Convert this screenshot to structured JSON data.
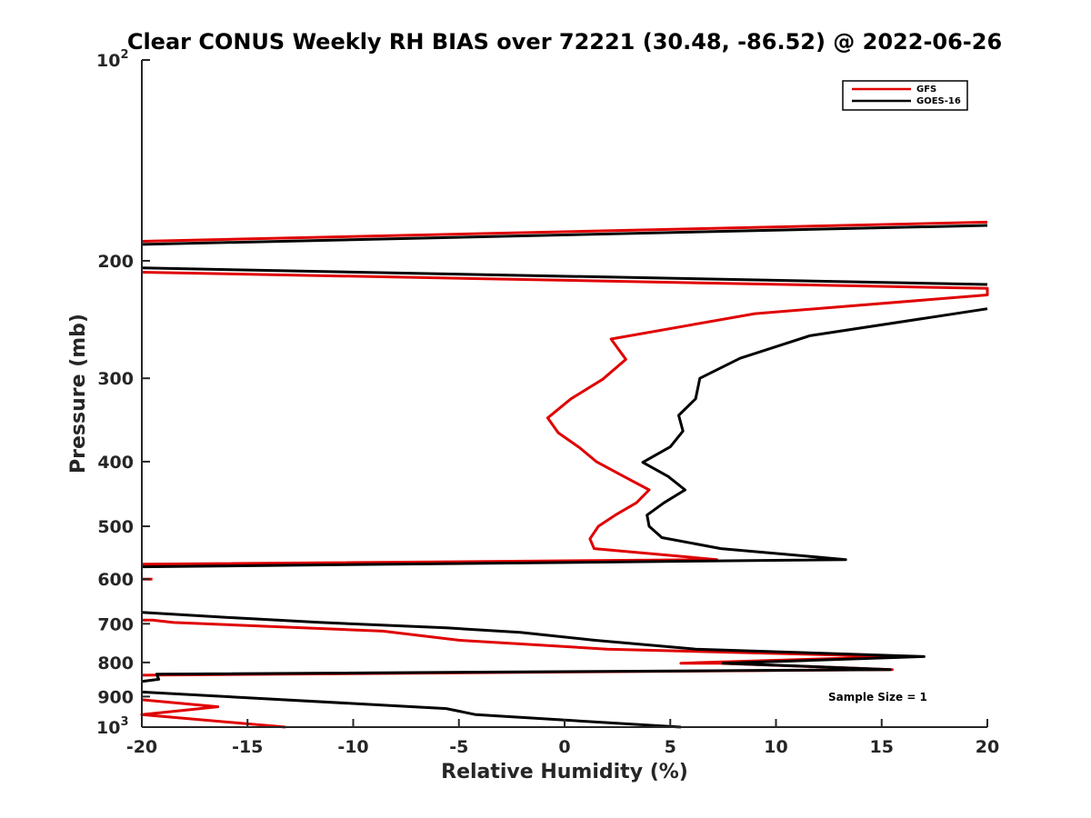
{
  "chart_data": {
    "type": "line",
    "title": "Clear CONUS Weekly RH BIAS over 72221 (30.48, -86.52) @ 2022-06-26",
    "xlabel": "Relative Humidity (%)",
    "ylabel": "Pressure (mb)",
    "xlim": [
      -20,
      20
    ],
    "ylim": [
      100,
      1000
    ],
    "y_scale": "log",
    "y_reversed": true,
    "grid": false,
    "legend_position": "top-right",
    "x_ticks": [
      "-20",
      "-15",
      "-10",
      "-5",
      "0",
      "5",
      "10",
      "15",
      "20"
    ],
    "y_ticks": [
      {
        "value": 100,
        "label": "10",
        "sup": "2"
      },
      {
        "value": 200,
        "label": "200",
        "sup": ""
      },
      {
        "value": 300,
        "label": "300",
        "sup": ""
      },
      {
        "value": 400,
        "label": "400",
        "sup": ""
      },
      {
        "value": 500,
        "label": "500",
        "sup": ""
      },
      {
        "value": 600,
        "label": "600",
        "sup": ""
      },
      {
        "value": 700,
        "label": "700",
        "sup": ""
      },
      {
        "value": 800,
        "label": "800",
        "sup": ""
      },
      {
        "value": 900,
        "label": "900",
        "sup": ""
      },
      {
        "value": 1000,
        "label": "10",
        "sup": "3"
      }
    ],
    "annotation": "Sample Size = 1",
    "series": [
      {
        "name": "GFS",
        "color": "#e00000",
        "segments": [
          [
            [
              20,
              175
            ],
            [
              -20,
              187
            ]
          ],
          [
            [
              -20,
              208
            ],
            [
              20,
              220
            ],
            [
              20,
              225
            ],
            [
              9,
              240
            ],
            [
              2.2,
              262
            ],
            [
              2.9,
              281
            ],
            [
              1.8,
              301
            ],
            [
              0.3,
              322
            ],
            [
              -0.8,
              344
            ],
            [
              -0.3,
              362
            ],
            [
              0.7,
              381
            ],
            [
              1.5,
              400
            ],
            [
              2.8,
              421
            ],
            [
              4,
              441
            ],
            [
              3.4,
              461
            ],
            [
              2.4,
              481
            ],
            [
              1.6,
              500
            ],
            [
              1.2,
              522
            ],
            [
              1.4,
              540
            ],
            [
              7.2,
              561
            ],
            [
              -20,
              570
            ]
          ],
          [
            [
              -20,
              600
            ],
            [
              -19.5,
              600
            ]
          ],
          [
            [
              -20,
              691
            ],
            [
              -19.5,
              691
            ],
            [
              -18.5,
              697
            ],
            [
              -8.6,
              718
            ],
            [
              -5,
              741
            ],
            [
              2,
              764
            ],
            [
              15.8,
              784
            ],
            [
              5.5,
              802
            ],
            [
              7.3,
              802
            ],
            [
              15.5,
              820
            ],
            [
              -20,
              836
            ]
          ],
          [
            [
              -20,
              910
            ],
            [
              -16.4,
              932
            ],
            [
              -20,
              958
            ],
            [
              -13.2,
              1000
            ]
          ]
        ]
      },
      {
        "name": "GOES-16",
        "color": "#000000",
        "segments": [
          [
            [
              20,
              177
            ],
            [
              -20,
              189
            ]
          ],
          [
            [
              -20,
              205
            ],
            [
              20,
              217
            ]
          ],
          [
            [
              20,
              236
            ],
            [
              11.6,
              259
            ],
            [
              8.3,
              280
            ],
            [
              6.4,
              300
            ],
            [
              6.2,
              322
            ],
            [
              5.4,
              341
            ],
            [
              5.6,
              360
            ],
            [
              5,
              380
            ],
            [
              3.7,
              401
            ],
            [
              4.9,
              421
            ],
            [
              5.7,
              441
            ],
            [
              4.7,
              461
            ],
            [
              3.9,
              481
            ],
            [
              4,
              500
            ],
            [
              4.6,
              520
            ],
            [
              7.4,
              540
            ],
            [
              13.3,
              561
            ],
            [
              -20,
              575
            ]
          ],
          [
            [
              -20,
              673
            ],
            [
              -15.5,
              686
            ],
            [
              -11.5,
              697
            ],
            [
              -5.6,
              710
            ],
            [
              -2.1,
              721
            ],
            [
              1.4,
              741
            ],
            [
              6.2,
              764
            ],
            [
              17,
              784
            ],
            [
              7.5,
              802
            ],
            [
              15.4,
              820
            ],
            [
              -19.3,
              833
            ],
            [
              -19.2,
              848
            ],
            [
              -20,
              854
            ]
          ],
          [
            [
              -20,
              886
            ],
            [
              -5.6,
              938
            ],
            [
              -4.2,
              958
            ],
            [
              5.5,
              1000
            ]
          ]
        ]
      }
    ]
  }
}
